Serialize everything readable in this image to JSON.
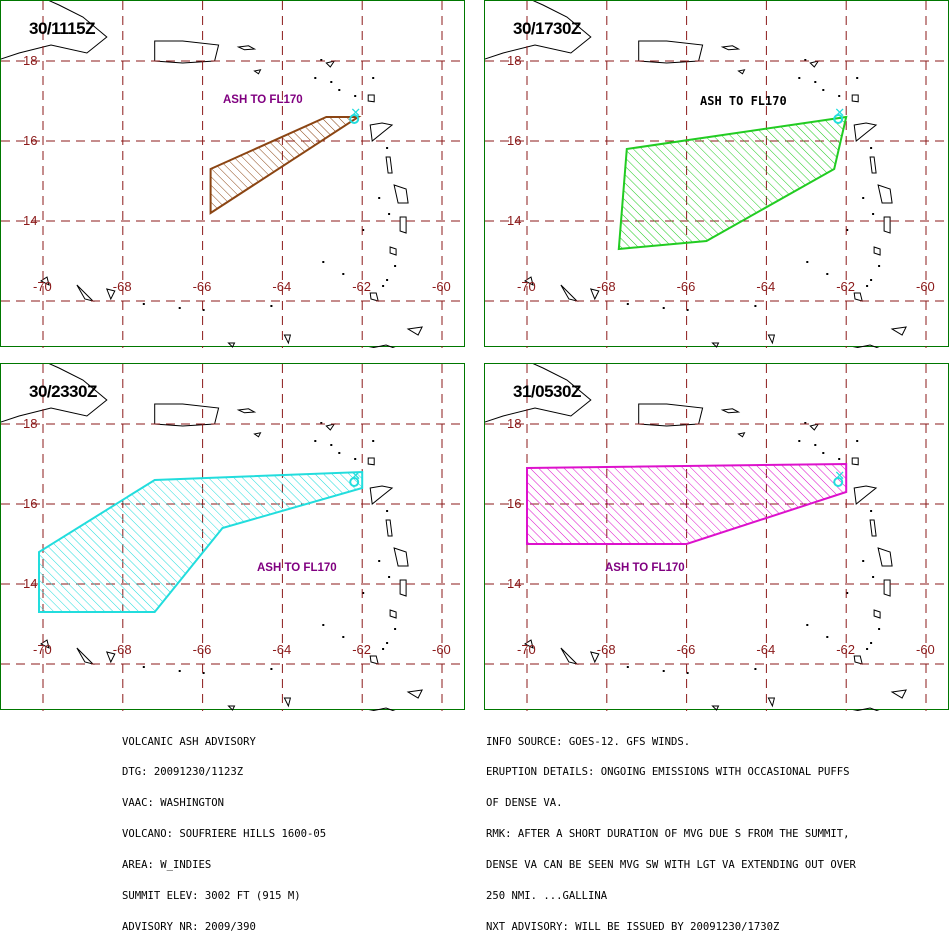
{
  "maps": [
    {
      "time": "30/1115Z",
      "ash_label": "ASH TO FL170",
      "ash_label_color": "#800080",
      "plume_color": "#8b4513",
      "plume": [
        [
          -65.8,
          14.2
        ],
        [
          -62.1,
          16.6
        ],
        [
          -62.9,
          16.6
        ],
        [
          -65.8,
          15.3
        ]
      ]
    },
    {
      "time": "30/1730Z",
      "ash_label": "ASH TO FL170",
      "ash_label_color": "#000000",
      "plume_color": "#22cc22",
      "plume": [
        [
          -67.7,
          13.3
        ],
        [
          -65.5,
          13.5
        ],
        [
          -62.3,
          15.3
        ],
        [
          -62.0,
          16.6
        ],
        [
          -67.5,
          15.8
        ]
      ]
    },
    {
      "time": "30/2330Z",
      "ash_label": "ASH TO FL170",
      "ash_label_color": "#800080",
      "plume_color": "#22dddd",
      "plume": [
        [
          -70.1,
          14.8
        ],
        [
          -70.1,
          13.3
        ],
        [
          -67.2,
          13.3
        ],
        [
          -65.5,
          15.4
        ],
        [
          -62.0,
          16.4
        ],
        [
          -62.0,
          16.8
        ],
        [
          -67.2,
          16.6
        ]
      ]
    },
    {
      "time": "31/0530Z",
      "ash_label": "ASH TO FL170",
      "ash_label_color": "#800080",
      "plume_color": "#dd11cc",
      "plume": [
        [
          -70.0,
          15.0
        ],
        [
          -70.0,
          16.9
        ],
        [
          -62.0,
          17.0
        ],
        [
          -62.0,
          16.3
        ],
        [
          -66.0,
          15.0
        ]
      ]
    }
  ],
  "grid": {
    "lat_labels": [
      "18",
      "16",
      "14"
    ],
    "lat_values": [
      18,
      16,
      14
    ],
    "lon_labels": [
      "-70",
      "-68",
      "-66",
      "-64",
      "-62",
      "-60"
    ],
    "lon_values": [
      -70,
      -68,
      -66,
      -64,
      -62,
      -60
    ],
    "line_color": "#8b1a1a"
  },
  "volcano": {
    "lon": -62.2,
    "lat": 16.7,
    "color": "#22dddd"
  },
  "advisory_left": [
    "VOLCANIC ASH ADVISORY",
    "DTG: 20091230/1123Z",
    "VAAC: WASHINGTON",
    "VOLCANO: SOUFRIERE HILLS 1600-05",
    "AREA: W_INDIES",
    "SUMMIT ELEV: 3002 FT (915 M)",
    "ADVISORY NR: 2009/390"
  ],
  "advisory_right": [
    "INFO SOURCE: GOES-12. GFS WINDS.",
    "ERUPTION DETAILS: ONGOING EMISSIONS WITH OCCASIONAL PUFFS",
    "OF DENSE VA.",
    "RMK: AFTER A SHORT DURATION OF MVG DUE S FROM THE SUMMIT,",
    "DENSE VA CAN BE SEEN MVG SW WITH LGT VA EXTENDING OUT OVER",
    "250 NMI. ...GALLINA",
    "NXT ADVISORY: WILL BE ISSUED BY 20091230/1730Z"
  ]
}
